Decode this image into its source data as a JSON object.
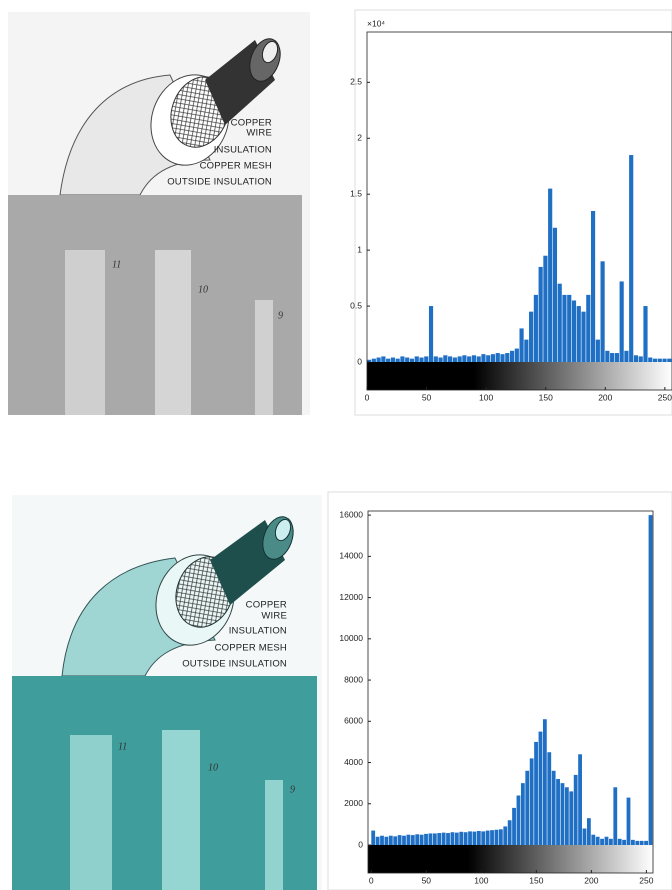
{
  "chart_data": [
    {
      "type": "histogram",
      "y_multiplier": "×10⁴",
      "color": "#1f6fc5",
      "bins": [
        0,
        4,
        8,
        12,
        16,
        20,
        24,
        28,
        32,
        36,
        40,
        44,
        48,
        52,
        56,
        60,
        64,
        68,
        72,
        76,
        80,
        84,
        88,
        92,
        96,
        100,
        104,
        108,
        112,
        116,
        120,
        124,
        128,
        132,
        136,
        140,
        144,
        148,
        152,
        156,
        160,
        164,
        168,
        172,
        176,
        180,
        184,
        188,
        192,
        196,
        200,
        204,
        208,
        212,
        216,
        220,
        224,
        228,
        232,
        236,
        240,
        244,
        248,
        252,
        256
      ],
      "counts": [
        0.02,
        0.03,
        0.04,
        0.05,
        0.03,
        0.04,
        0.03,
        0.05,
        0.04,
        0.03,
        0.05,
        0.04,
        0.05,
        0.5,
        0.05,
        0.04,
        0.06,
        0.05,
        0.04,
        0.05,
        0.06,
        0.05,
        0.06,
        0.05,
        0.07,
        0.06,
        0.07,
        0.08,
        0.07,
        0.08,
        0.1,
        0.12,
        0.3,
        0.2,
        0.45,
        0.6,
        0.85,
        0.95,
        1.55,
        1.2,
        0.7,
        0.6,
        0.6,
        0.55,
        0.5,
        0.45,
        0.6,
        1.35,
        0.2,
        0.9,
        0.1,
        0.08,
        0.08,
        0.72,
        0.1,
        1.85,
        0.06,
        0.05,
        0.5,
        0.04,
        0.03,
        0.03,
        0.03,
        0.03
      ],
      "xlim": [
        0,
        256
      ],
      "ylim": [
        0,
        2.95
      ],
      "xticks": [
        0,
        50,
        100,
        150,
        200,
        250
      ],
      "yticks": [
        0,
        0.5,
        1,
        1.5,
        2,
        2.5
      ]
    },
    {
      "type": "histogram",
      "color": "#1f6fc5",
      "bins": [
        0,
        4,
        8,
        12,
        16,
        20,
        24,
        28,
        32,
        36,
        40,
        44,
        48,
        52,
        56,
        60,
        64,
        68,
        72,
        76,
        80,
        84,
        88,
        92,
        96,
        100,
        104,
        108,
        112,
        116,
        120,
        124,
        128,
        132,
        136,
        140,
        144,
        148,
        152,
        156,
        160,
        164,
        168,
        172,
        176,
        180,
        184,
        188,
        192,
        196,
        200,
        204,
        208,
        212,
        216,
        220,
        224,
        228,
        232,
        236,
        240,
        244,
        248,
        252,
        256
      ],
      "counts": [
        700,
        400,
        450,
        400,
        450,
        420,
        480,
        450,
        500,
        480,
        520,
        500,
        540,
        560,
        560,
        580,
        600,
        580,
        620,
        600,
        640,
        620,
        660,
        650,
        680,
        660,
        700,
        720,
        740,
        760,
        900,
        1200,
        1800,
        2400,
        3000,
        3600,
        4200,
        5000,
        5500,
        6100,
        4500,
        3600,
        3200,
        3000,
        2800,
        2600,
        3400,
        4400,
        800,
        1300,
        500,
        400,
        300,
        400,
        300,
        2800,
        300,
        250,
        2300,
        250,
        200,
        200,
        200,
        16000
      ],
      "xlim": [
        -3,
        256
      ],
      "ylim": [
        0,
        16200
      ],
      "xticks": [
        0,
        50,
        100,
        150,
        200,
        250
      ],
      "yticks": [
        0,
        2000,
        4000,
        6000,
        8000,
        10000,
        12000,
        14000,
        16000
      ]
    }
  ],
  "illustrations": [
    {
      "labels": [
        "COPPER",
        "WIRE",
        "INSULATION",
        "COPPER MESH",
        "OUTSIDE INSULATION"
      ],
      "photo_marks": [
        "11",
        "10",
        "9"
      ]
    },
    {
      "labels": [
        "COPPER",
        "WIRE",
        "INSULATION",
        "COPPER MESH",
        "OUTSIDE INSULATION"
      ],
      "photo_marks": [
        "11",
        "10",
        "9"
      ]
    }
  ]
}
